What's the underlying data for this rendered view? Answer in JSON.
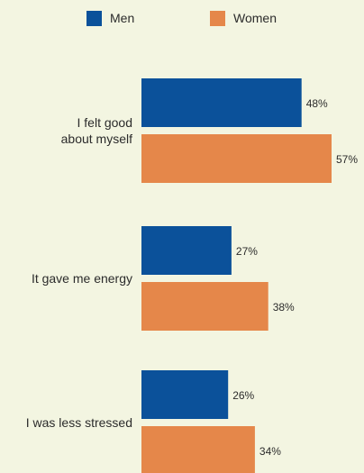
{
  "chart_data": {
    "type": "bar",
    "orientation": "horizontal",
    "categories": [
      [
        "I felt good",
        "about myself"
      ],
      [
        "It gave me energy"
      ],
      [
        "I was less stressed"
      ]
    ],
    "series": [
      {
        "name": "Men",
        "color": "#0b519a",
        "values": [
          48,
          27,
          26
        ],
        "labels": [
          "48%",
          "27%",
          "26%"
        ]
      },
      {
        "name": "Women",
        "color": "#e5874a",
        "values": [
          57,
          38,
          34
        ],
        "labels": [
          "57%",
          "38%",
          "34%"
        ]
      }
    ],
    "xlim": [
      0,
      100
    ],
    "legend": "top-center",
    "grid": false,
    "title": "",
    "xlabel": "",
    "ylabel": ""
  }
}
